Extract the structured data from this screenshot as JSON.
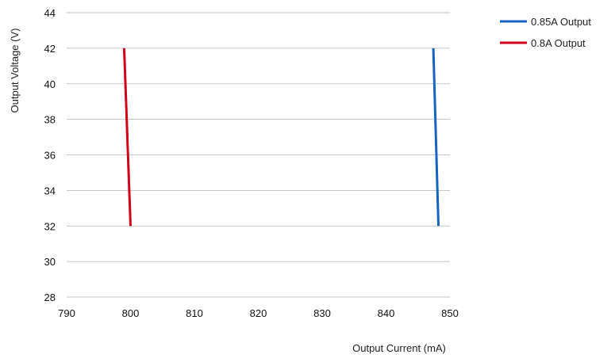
{
  "chart_data": {
    "type": "line",
    "title": "",
    "xlabel": "Output Current (mA)",
    "ylabel": "Output Voltage (V)",
    "xlim": [
      790,
      850
    ],
    "ylim": [
      28,
      44
    ],
    "x_ticks": [
      790,
      800,
      810,
      820,
      830,
      840,
      850
    ],
    "y_ticks": [
      28,
      30,
      32,
      34,
      36,
      38,
      40,
      42,
      44
    ],
    "grid": "horizontal",
    "legend_position": "top-right",
    "series": [
      {
        "name": "0.85A Output",
        "color": "#1565c0",
        "points": [
          {
            "x": 847.4,
            "y": 42
          },
          {
            "x": 848.2,
            "y": 32
          }
        ]
      },
      {
        "name": "0.8A Output",
        "color": "#d0021b",
        "points": [
          {
            "x": 799.0,
            "y": 42
          },
          {
            "x": 799.4,
            "y": 38
          },
          {
            "x": 800.0,
            "y": 32
          }
        ]
      }
    ]
  }
}
